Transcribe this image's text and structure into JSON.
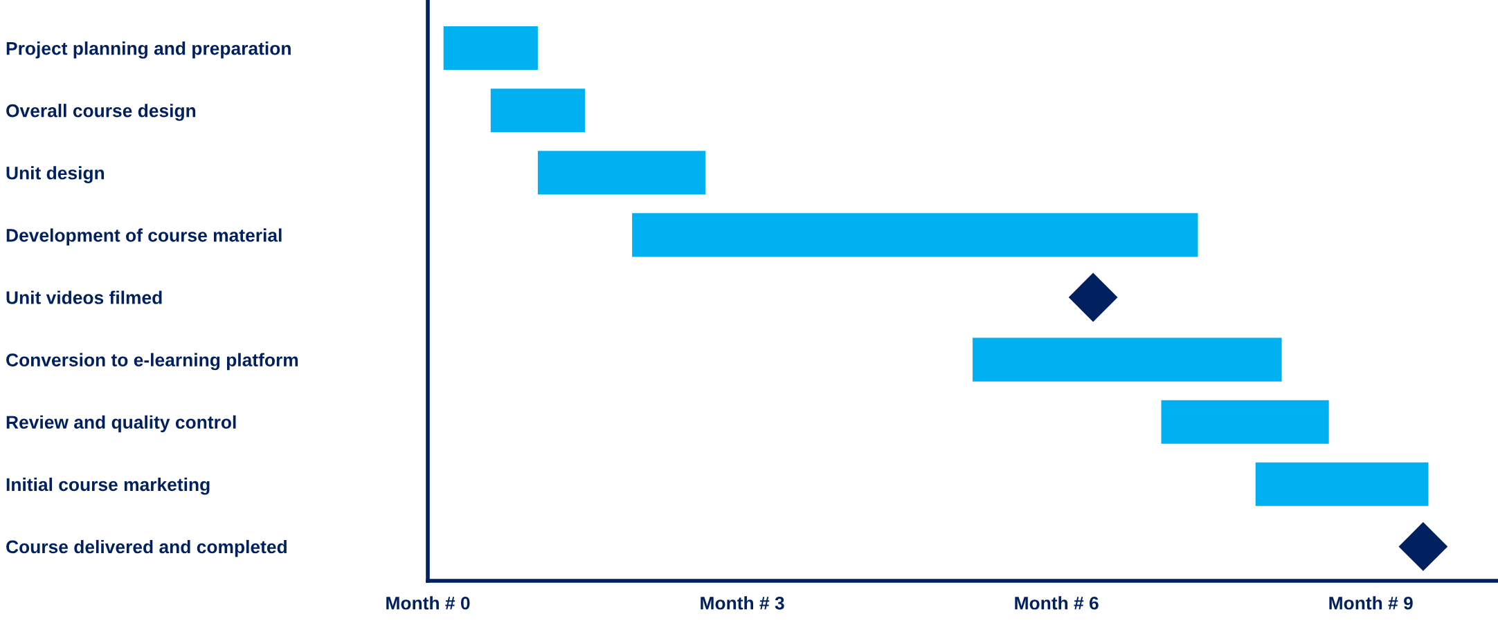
{
  "chart_data": {
    "type": "bar",
    "orientation": "horizontal",
    "categories": [
      "Project planning and preparation",
      "Overall course design",
      "Unit design",
      "Development of course material",
      "Unit videos filmed",
      "Conversion to e-learning platform",
      "Review and quality control",
      "Initial course marketing",
      "Course delivered and completed"
    ],
    "series": [
      {
        "color": "#00b0f0",
        "base": [
          0.15,
          0.6,
          1.05,
          1.95,
          null,
          5.2,
          7.0,
          7.9,
          null
        ],
        "values": [
          0.9,
          0.9,
          1.6,
          5.4,
          null,
          2.95,
          1.6,
          1.65,
          null
        ]
      },
      {
        "type": "scatter",
        "color": "#002060",
        "marker": "diamond",
        "values": [
          null,
          null,
          null,
          null,
          6.35,
          null,
          null,
          null,
          9.5
        ]
      }
    ],
    "xlim": [
      0,
      10.2
    ],
    "xticks": [
      {
        "value": 0,
        "label": "Month # 0"
      },
      {
        "value": 3,
        "label": "Month # 3"
      },
      {
        "value": 6,
        "label": "Month # 6"
      },
      {
        "value": 9,
        "label": "Month # 9"
      }
    ],
    "grid": false,
    "legend": false
  }
}
